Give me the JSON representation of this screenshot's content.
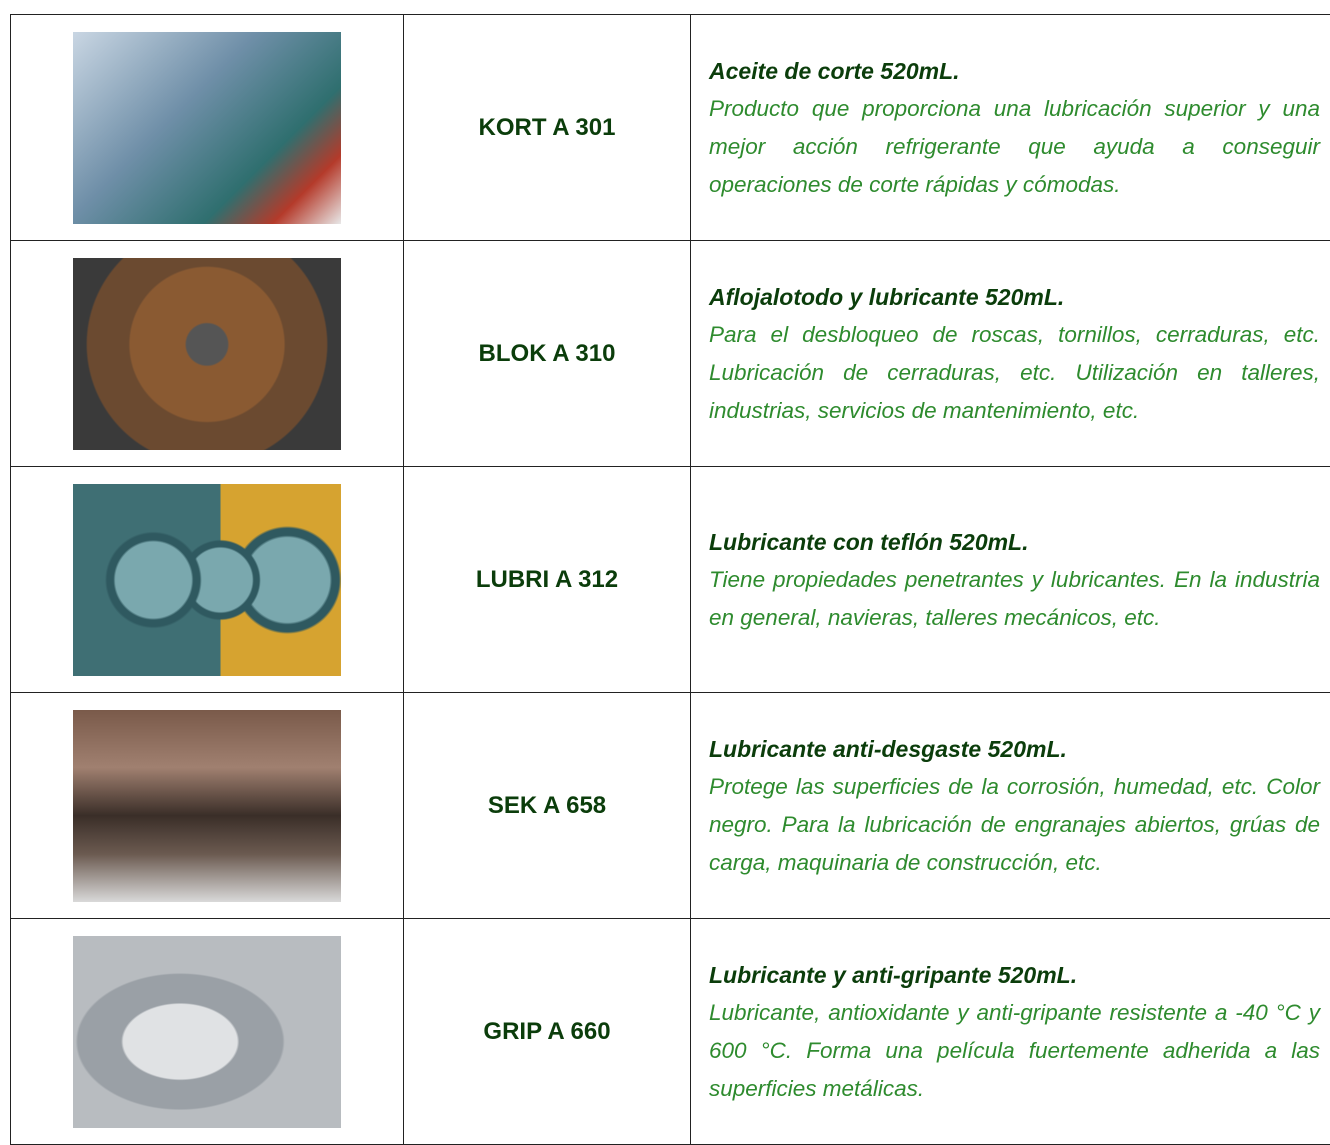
{
  "table": {
    "rows": [
      {
        "code": "KORT A 301",
        "title": "Aceite de corte 520mL.",
        "description": "Producto que proporciona una lubricación superior y una mejor acción refrigerante que ayuda a conseguir operaciones de corte rápidas y cómodas."
      },
      {
        "code": "BLOK A 310",
        "title": "Aflojalotodo y lubricante 520mL.",
        "description": "Para el desbloqueo de roscas, tornillos, cerraduras, etc. Lubricación de cerraduras, etc. Utilización en talleres, industrias, servicios de mantenimiento, etc."
      },
      {
        "code": "LUBRI A 312",
        "title": "Lubricante con teflón 520mL.",
        "description": "Tiene propiedades penetrantes y lubricantes. En la industria en general, navieras, talleres mecánicos, etc."
      },
      {
        "code": "SEK A 658",
        "title": "Lubricante anti-desgaste 520mL.",
        "description": "Protege las superficies de la corrosión, humedad, etc. Color negro. Para la lubricación de engranajes abiertos, grúas de carga, maquinaria de construcción, etc."
      },
      {
        "code": "GRIP A 660",
        "title": "Lubricante y anti-gripante 520mL.",
        "description": "Lubricante, antioxidante y anti-gripante resistente a -40 °C y 600 °C. Forma una película fuertemente adherida a las superficies metálicas."
      }
    ]
  }
}
